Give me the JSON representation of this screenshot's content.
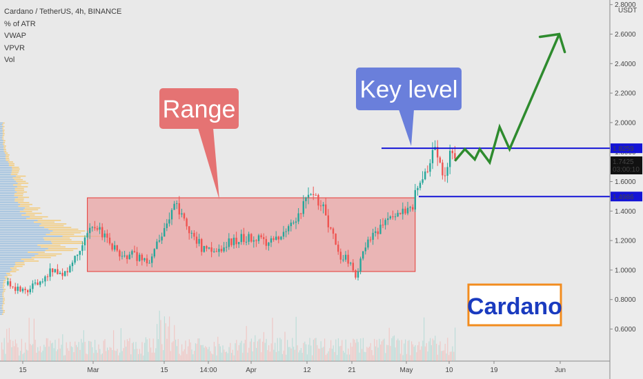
{
  "legend": {
    "symbol": "Cardano / TetherUS, 4h, BINANCE",
    "indicators": [
      "% of ATR",
      "VWAP",
      "VPVR",
      "Vol"
    ]
  },
  "chart_data": {
    "type": "candlestick",
    "symbol": "Cardano / TetherUS",
    "interval": "4h",
    "exchange": "BINANCE",
    "currency_label": "USDT",
    "x_tick_labels": [
      "15",
      "Mar",
      "15",
      "14:00",
      "Apr",
      "12",
      "21",
      "May",
      "10",
      "19",
      "Jun"
    ],
    "y_tick_labels": [
      "2.8000",
      "2.6000",
      "2.4000",
      "2.2000",
      "2.0000",
      "1.8000",
      "1.6000",
      "1.4000",
      "1.2000",
      "1.0000",
      "0.8000",
      "0.6000"
    ],
    "y_ticks": [
      2.8,
      2.6,
      2.4,
      2.2,
      2.0,
      1.8,
      1.6,
      1.4,
      1.2,
      1.0,
      0.8,
      0.6
    ],
    "ylim": [
      0.38,
      2.84
    ],
    "price_path": [
      {
        "t": "Feb-12",
        "p": 0.9
      },
      {
        "t": "Feb-15",
        "p": 0.85
      },
      {
        "t": "Feb-18",
        "p": 0.92
      },
      {
        "t": "Feb-21",
        "p": 1.0
      },
      {
        "t": "Feb-24",
        "p": 0.98
      },
      {
        "t": "Feb-27",
        "p": 1.2
      },
      {
        "t": "Mar-01",
        "p": 1.32
      },
      {
        "t": "Mar-03",
        "p": 1.25
      },
      {
        "t": "Mar-06",
        "p": 1.12
      },
      {
        "t": "Mar-09",
        "p": 1.1
      },
      {
        "t": "Mar-12",
        "p": 1.05
      },
      {
        "t": "Mar-15",
        "p": 1.22
      },
      {
        "t": "Mar-18",
        "p": 1.45
      },
      {
        "t": "Mar-20",
        "p": 1.3
      },
      {
        "t": "Mar-23",
        "p": 1.15
      },
      {
        "t": "Mar-26",
        "p": 1.1
      },
      {
        "t": "Mar-29",
        "p": 1.2
      },
      {
        "t": "Apr-01",
        "p": 1.22
      },
      {
        "t": "Apr-05",
        "p": 1.2
      },
      {
        "t": "Apr-09",
        "p": 1.25
      },
      {
        "t": "Apr-12",
        "p": 1.4
      },
      {
        "t": "Apr-14",
        "p": 1.55
      },
      {
        "t": "Apr-16",
        "p": 1.45
      },
      {
        "t": "Apr-18",
        "p": 1.28
      },
      {
        "t": "Apr-20",
        "p": 1.1
      },
      {
        "t": "Apr-22",
        "p": 1.05
      },
      {
        "t": "Apr-23",
        "p": 0.95
      },
      {
        "t": "Apr-25",
        "p": 1.18
      },
      {
        "t": "Apr-28",
        "p": 1.3
      },
      {
        "t": "May-01",
        "p": 1.35
      },
      {
        "t": "May-04",
        "p": 1.4
      },
      {
        "t": "May-05",
        "p": 1.5
      },
      {
        "t": "May-07",
        "p": 1.65
      },
      {
        "t": "May-09",
        "p": 1.8
      },
      {
        "t": "May-10",
        "p": 1.72
      },
      {
        "t": "May-11",
        "p": 1.62
      },
      {
        "t": "May-12",
        "p": 1.78
      },
      {
        "t": "May-13",
        "p": 1.74
      }
    ],
    "range_zone": {
      "label": "Range",
      "t_start": "Feb-28",
      "t_end": "May-05",
      "low": 0.99,
      "high": 1.49
    },
    "key_levels": [
      {
        "value": 1.8259,
        "label": "1.8259"
      },
      {
        "value": 1.4986,
        "label": "1.4986"
      }
    ],
    "last_price": {
      "value": 1.7425,
      "label": "1.7425",
      "countdown": "03:00:10"
    },
    "projection": [
      {
        "t": "May-13",
        "p": 1.74
      },
      {
        "t": "May-15",
        "p": 1.82
      },
      {
        "t": "May-17",
        "p": 1.75
      },
      {
        "t": "May-18",
        "p": 1.82
      },
      {
        "t": "May-20",
        "p": 1.73
      },
      {
        "t": "May-22",
        "p": 1.97
      },
      {
        "t": "May-24",
        "p": 1.82
      },
      {
        "t": "Jun-03",
        "p": 2.6
      }
    ],
    "annotations": [
      {
        "text": "Range",
        "type": "callout"
      },
      {
        "text": "Key level",
        "type": "callout"
      },
      {
        "text": "Cardano",
        "type": "label"
      }
    ]
  },
  "colors": {
    "background": "#e9e9e9",
    "up": "#26a69a",
    "down": "#ef5350",
    "range_fill": "#e9a3a3",
    "range_border": "#e53935",
    "key_level": "#1414d6",
    "projection": "#2e8b2e",
    "range_callout": "#e57373",
    "key_level_callout": "#6a7fdb",
    "cardano_border": "#f28c1e",
    "cardano_text": "#1a3bbf"
  }
}
